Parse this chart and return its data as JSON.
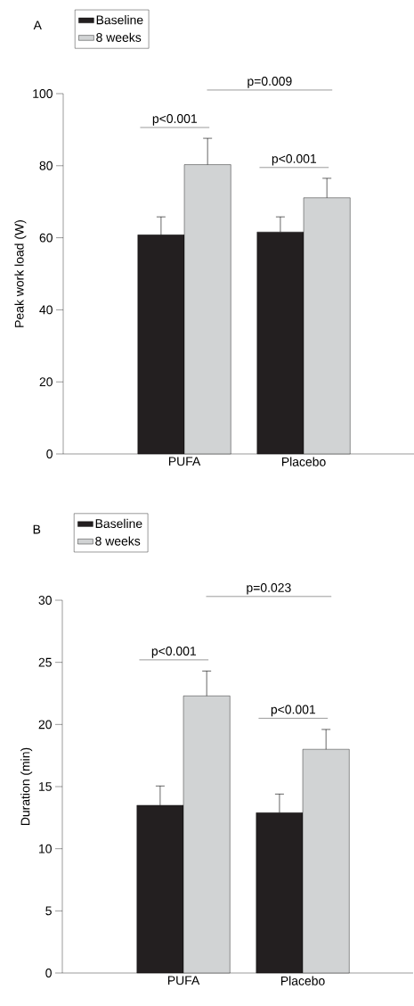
{
  "chart_data": [
    {
      "type": "bar",
      "title": "A",
      "ylabel": "Peak work load (W)",
      "categories": [
        "PUFA",
        "Placebo"
      ],
      "series": [
        {
          "name": "Baseline",
          "color": "#231f20",
          "values": [
            60.8,
            61.6
          ],
          "errors": [
            5.0,
            4.2
          ]
        },
        {
          "name": "8 weeks",
          "color": "#d1d3d4",
          "values": [
            80.3,
            71.1
          ],
          "errors": [
            7.3,
            5.4
          ]
        }
      ],
      "ylim": [
        0,
        100
      ],
      "yticks": [
        0,
        20,
        40,
        60,
        80,
        100
      ],
      "legend": "top left",
      "grid": false,
      "annotations": [
        "p<0.001",
        "p<0.001",
        "p=0.009"
      ]
    },
    {
      "type": "bar",
      "title": "B",
      "ylabel": "Duration (min)",
      "categories": [
        "PUFA",
        "Placebo"
      ],
      "series": [
        {
          "name": "Baseline",
          "color": "#231f20",
          "values": [
            13.5,
            12.9
          ],
          "errors": [
            1.55,
            1.5
          ]
        },
        {
          "name": "8 weeks",
          "color": "#d1d3d4",
          "values": [
            22.3,
            18.0
          ],
          "errors": [
            2.0,
            1.6
          ]
        }
      ],
      "ylim": [
        0,
        30
      ],
      "yticks": [
        0,
        5,
        10,
        15,
        20,
        25,
        30
      ],
      "legend": "top left",
      "grid": false,
      "annotations": [
        "p<0.001",
        "p<0.001",
        "p=0.023"
      ]
    }
  ]
}
